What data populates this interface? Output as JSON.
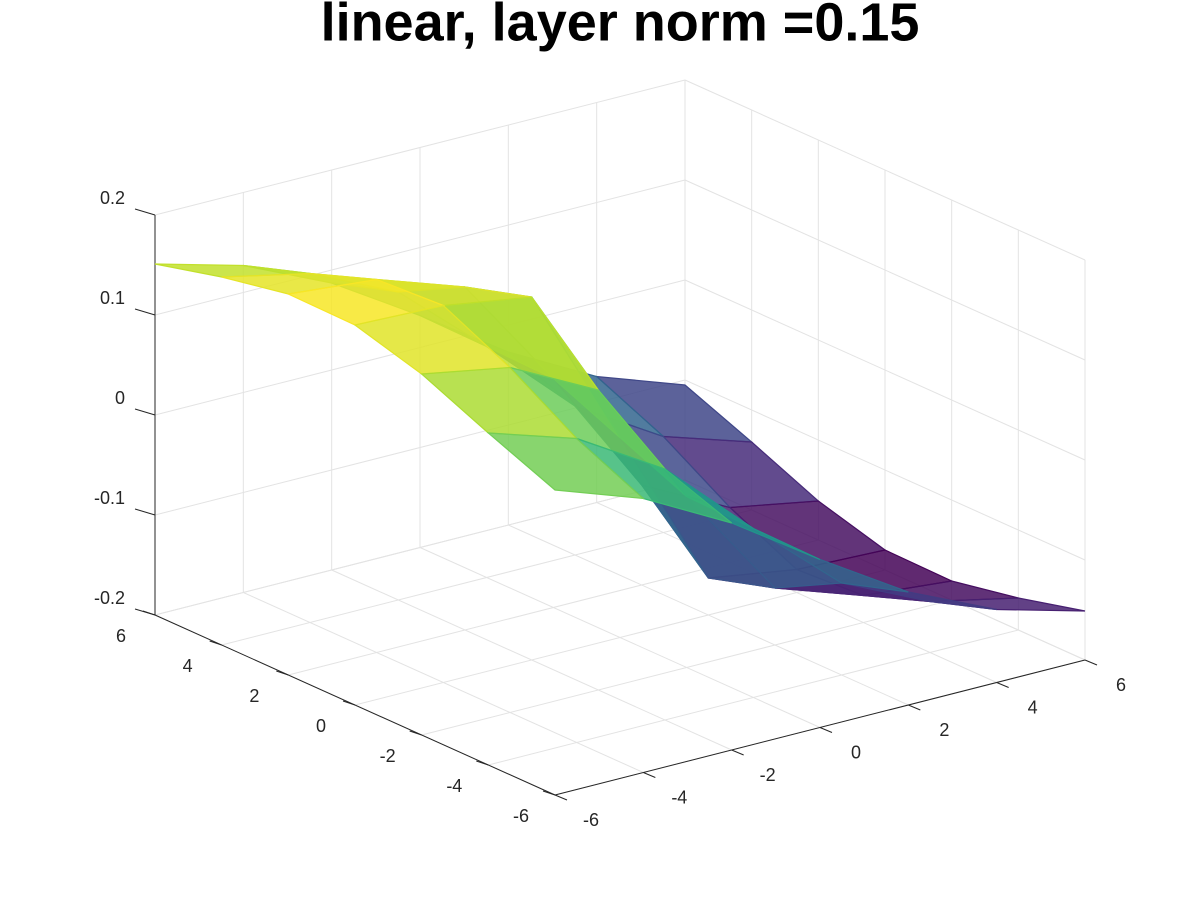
{
  "chart_data": {
    "type": "surface",
    "title": "linear, layer norm =0.15",
    "x": [
      -6,
      -4,
      -2,
      0,
      2,
      4,
      6
    ],
    "y": [
      -6,
      -4,
      -2,
      0,
      2,
      4,
      6
    ],
    "z": [
      [
        0.105,
        0.074,
        0.027,
        -0.032,
        -0.087,
        -0.127,
        -0.151
      ],
      [
        0.132,
        0.104,
        0.051,
        -0.031,
        -0.108,
        -0.149,
        -0.168
      ],
      [
        0.161,
        0.145,
        0.1,
        -0.029,
        -0.143,
        -0.173,
        -0.181
      ],
      [
        0.18,
        0.177,
        0.163,
        0,
        -0.163,
        -0.177,
        -0.18
      ],
      [
        0.181,
        0.173,
        0.143,
        0.029,
        -0.1,
        -0.145,
        -0.161
      ],
      [
        0.168,
        0.149,
        0.108,
        0.031,
        -0.051,
        -0.104,
        -0.132
      ],
      [
        0.151,
        0.127,
        0.087,
        0.032,
        -0.027,
        -0.074,
        -0.105
      ]
    ],
    "xlim": [
      -6,
      6
    ],
    "ylim": [
      -6,
      6
    ],
    "zlim": [
      -0.2,
      0.2
    ],
    "xticks": [
      -6,
      -4,
      -2,
      0,
      2,
      4,
      6
    ],
    "yticks": [
      -6,
      -4,
      -2,
      0,
      2,
      4,
      6
    ],
    "zticks": [
      -0.2,
      -0.1,
      0,
      0.1,
      0.2
    ],
    "grid": true,
    "colormap": "viridis"
  }
}
